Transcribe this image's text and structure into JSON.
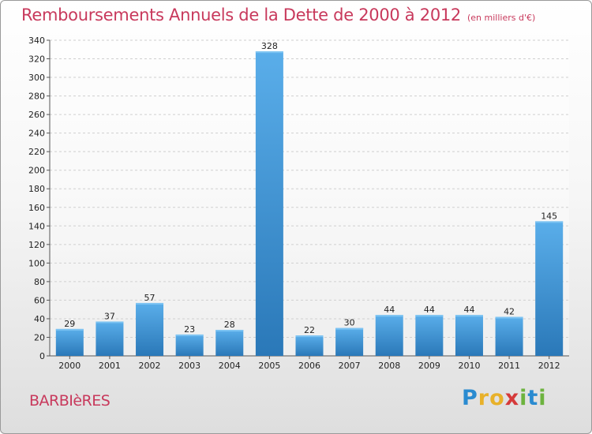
{
  "header": {
    "title": "Remboursements Annuels de la Dette de 2000 à 2012",
    "subtitle": "(en milliers d'€)"
  },
  "footer": {
    "commune": "BARBIèRES",
    "logo": "Proxiti"
  },
  "colors": {
    "title": "#c8395c",
    "bar_top": "#5aaeea",
    "bar_bottom": "#2a78b8"
  },
  "chart_data": {
    "type": "bar",
    "title": "Remboursements Annuels de la Dette de 2000 à 2012",
    "subtitle": "(en milliers d'€)",
    "categories": [
      "2000",
      "2001",
      "2002",
      "2003",
      "2004",
      "2005",
      "2006",
      "2007",
      "2008",
      "2009",
      "2010",
      "2011",
      "2012"
    ],
    "values": [
      29,
      37,
      57,
      23,
      28,
      328,
      22,
      30,
      44,
      44,
      44,
      42,
      145
    ],
    "ylim": [
      0,
      340
    ],
    "yticks": [
      0,
      20,
      40,
      60,
      80,
      100,
      120,
      140,
      160,
      180,
      200,
      220,
      240,
      260,
      280,
      300,
      320,
      340
    ],
    "grid": true,
    "xlabel": "",
    "ylabel": ""
  }
}
